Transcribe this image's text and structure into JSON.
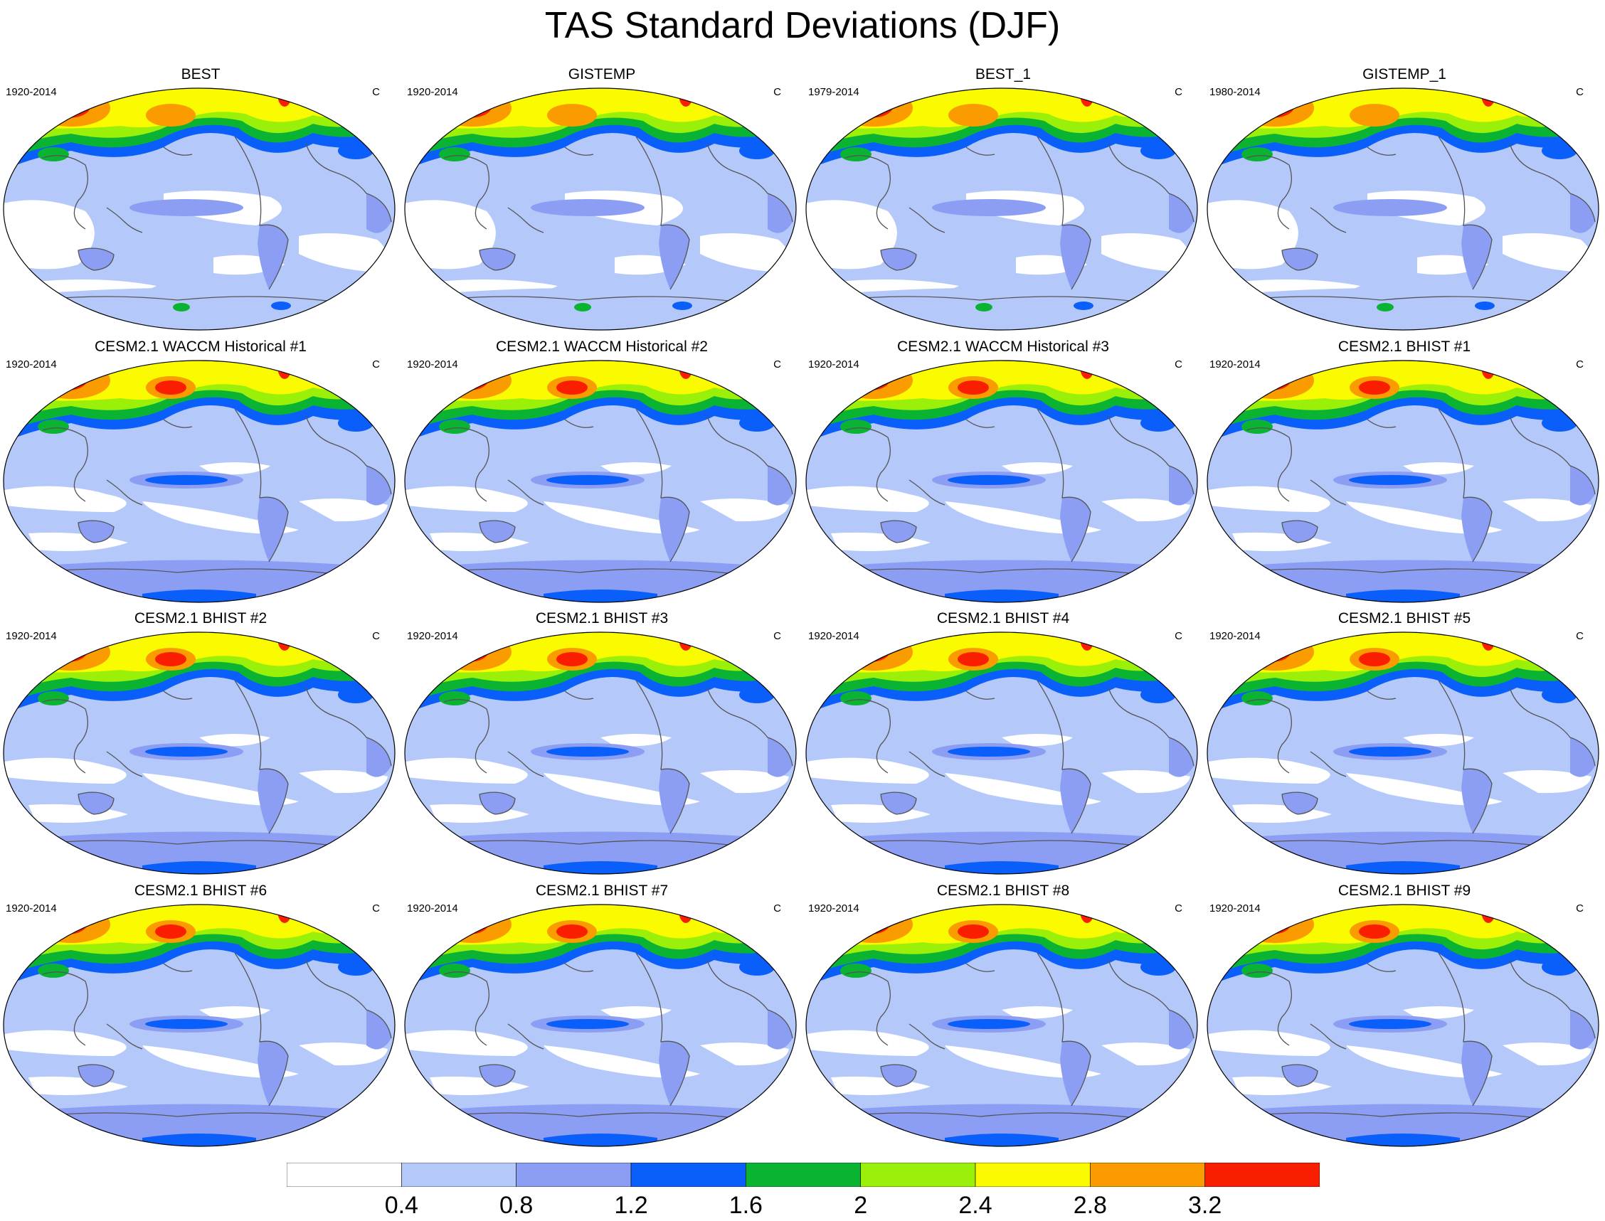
{
  "title": "TAS Standard Deviations (DJF)",
  "colors": {
    "levels": [
      "#ffffff",
      "#b4c8fa",
      "#8c9ef4",
      "#0a5ffa",
      "#0ab432",
      "#9bf00a",
      "#fafa00",
      "#fa9b00",
      "#fa1e00"
    ],
    "coast": "#555555",
    "outline": "#000000"
  },
  "colorbar": {
    "ticks": [
      "0.4",
      "0.8",
      "1.2",
      "1.6",
      "2",
      "2.4",
      "2.8",
      "3.2"
    ]
  },
  "panels": [
    {
      "title": "BEST",
      "years": "1920-2014",
      "units": "C",
      "kind": "obs"
    },
    {
      "title": "GISTEMP",
      "years": "1920-2014",
      "units": "C",
      "kind": "obs"
    },
    {
      "title": "BEST_1",
      "years": "1979-2014",
      "units": "C",
      "kind": "obs"
    },
    {
      "title": "GISTEMP_1",
      "years": "1980-2014",
      "units": "C",
      "kind": "obs"
    },
    {
      "title": "CESM2.1 WACCM Historical #1",
      "years": "1920-2014",
      "units": "C",
      "kind": "model"
    },
    {
      "title": "CESM2.1 WACCM Historical #2",
      "years": "1920-2014",
      "units": "C",
      "kind": "model"
    },
    {
      "title": "CESM2.1 WACCM Historical #3",
      "years": "1920-2014",
      "units": "C",
      "kind": "model"
    },
    {
      "title": "CESM2.1 BHIST #1",
      "years": "1920-2014",
      "units": "C",
      "kind": "model"
    },
    {
      "title": "CESM2.1 BHIST #2",
      "years": "1920-2014",
      "units": "C",
      "kind": "model"
    },
    {
      "title": "CESM2.1 BHIST #3",
      "years": "1920-2014",
      "units": "C",
      "kind": "model"
    },
    {
      "title": "CESM2.1 BHIST #4",
      "years": "1920-2014",
      "units": "C",
      "kind": "model"
    },
    {
      "title": "CESM2.1 BHIST #5",
      "years": "1920-2014",
      "units": "C",
      "kind": "model"
    },
    {
      "title": "CESM2.1 BHIST #6",
      "years": "1920-2014",
      "units": "C",
      "kind": "model"
    },
    {
      "title": "CESM2.1 BHIST #7",
      "years": "1920-2014",
      "units": "C",
      "kind": "model"
    },
    {
      "title": "CESM2.1 BHIST #8",
      "years": "1920-2014",
      "units": "C",
      "kind": "model"
    },
    {
      "title": "CESM2.1 BHIST #9",
      "years": "1920-2014",
      "units": "C",
      "kind": "model"
    }
  ]
}
